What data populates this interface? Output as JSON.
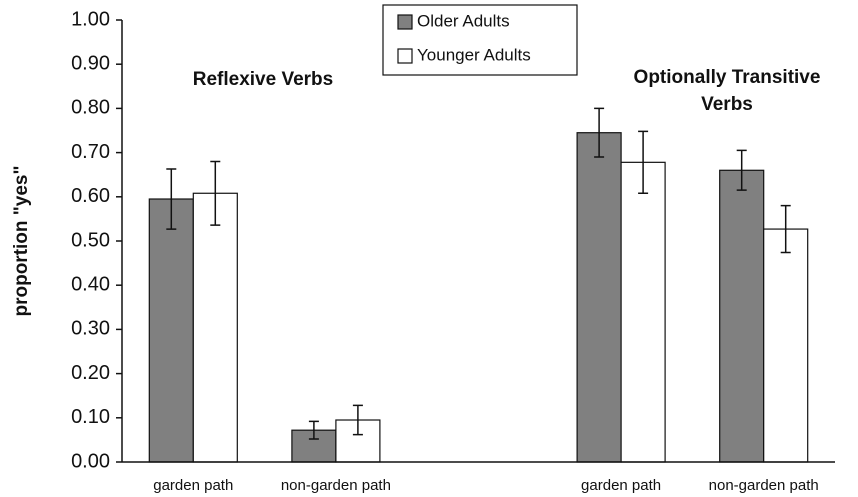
{
  "chart_data": {
    "type": "bar",
    "ylabel": "proportion \"yes\"",
    "categories": [
      "garden path",
      "non-garden path",
      null,
      "garden path",
      "non-garden path"
    ],
    "series": [
      {
        "name": "Older Adults",
        "color": "#808080",
        "values": [
          0.595,
          0.072,
          null,
          0.745,
          0.66
        ],
        "errors": [
          0.068,
          0.02,
          null,
          0.055,
          0.045
        ]
      },
      {
        "name": "Younger Adults",
        "color": "#ffffff",
        "values": [
          0.608,
          0.095,
          null,
          0.678,
          0.527
        ],
        "errors": [
          0.072,
          0.033,
          null,
          0.07,
          0.053
        ]
      }
    ],
    "annotations": [
      "Reflexive Verbs",
      "Optionally Transitive",
      "Verbs"
    ],
    "ylim": [
      0,
      1
    ],
    "yticks": [
      {
        "value": 0,
        "label": "0.00"
      },
      {
        "value": 0.1,
        "label": "0.10"
      },
      {
        "value": 0.2,
        "label": "0.20"
      },
      {
        "value": 0.3,
        "label": "0.30"
      },
      {
        "value": 0.4,
        "label": "0.40"
      },
      {
        "value": 0.5,
        "label": "0.50"
      },
      {
        "value": 0.6,
        "label": "0.60"
      },
      {
        "value": 0.7,
        "label": "0.70"
      },
      {
        "value": 0.8,
        "label": "0.80"
      },
      {
        "value": 0.9,
        "label": "0.90"
      },
      {
        "value": 1,
        "label": "1.00"
      }
    ],
    "legend": "top"
  }
}
